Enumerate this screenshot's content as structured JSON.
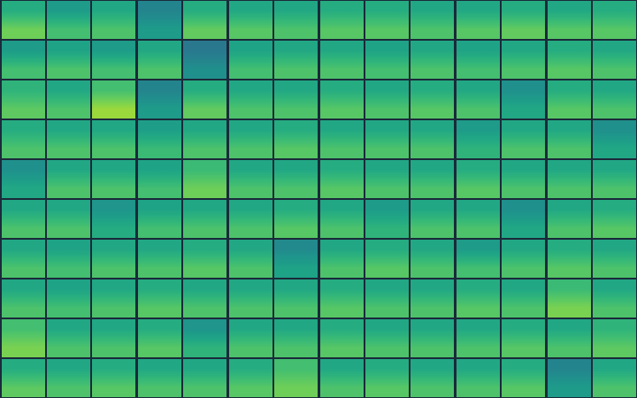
{
  "chart_data": {
    "type": "heatmap",
    "tick_labels": false,
    "color_range": [
      0,
      1
    ],
    "cells": [
      [
        [
          0.62,
          0.78
        ],
        [
          0.55,
          0.7
        ],
        [
          0.6,
          0.72
        ],
        [
          0.45,
          0.55
        ],
        [
          0.62,
          0.76
        ],
        [
          0.6,
          0.74
        ],
        [
          0.6,
          0.72
        ],
        [
          0.62,
          0.74
        ],
        [
          0.62,
          0.74
        ],
        [
          0.6,
          0.72
        ],
        [
          0.6,
          0.74
        ],
        [
          0.62,
          0.76
        ],
        [
          0.6,
          0.74
        ],
        [
          0.62,
          0.74
        ]
      ],
      [
        [
          0.55,
          0.7
        ],
        [
          0.58,
          0.72
        ],
        [
          0.55,
          0.7
        ],
        [
          0.6,
          0.72
        ],
        [
          0.4,
          0.5
        ],
        [
          0.58,
          0.7
        ],
        [
          0.6,
          0.72
        ],
        [
          0.6,
          0.72
        ],
        [
          0.58,
          0.7
        ],
        [
          0.6,
          0.72
        ],
        [
          0.58,
          0.7
        ],
        [
          0.6,
          0.72
        ],
        [
          0.62,
          0.74
        ],
        [
          0.6,
          0.72
        ]
      ],
      [
        [
          0.65,
          0.75
        ],
        [
          0.6,
          0.72
        ],
        [
          0.7,
          0.85
        ],
        [
          0.45,
          0.55
        ],
        [
          0.62,
          0.76
        ],
        [
          0.6,
          0.72
        ],
        [
          0.6,
          0.72
        ],
        [
          0.62,
          0.74
        ],
        [
          0.6,
          0.72
        ],
        [
          0.62,
          0.74
        ],
        [
          0.6,
          0.72
        ],
        [
          0.5,
          0.6
        ],
        [
          0.62,
          0.74
        ],
        [
          0.6,
          0.72
        ]
      ],
      [
        [
          0.62,
          0.72
        ],
        [
          0.6,
          0.72
        ],
        [
          0.6,
          0.72
        ],
        [
          0.56,
          0.68
        ],
        [
          0.6,
          0.72
        ],
        [
          0.6,
          0.72
        ],
        [
          0.62,
          0.74
        ],
        [
          0.6,
          0.72
        ],
        [
          0.6,
          0.72
        ],
        [
          0.6,
          0.72
        ],
        [
          0.55,
          0.65
        ],
        [
          0.6,
          0.72
        ],
        [
          0.6,
          0.72
        ],
        [
          0.5,
          0.6
        ]
      ],
      [
        [
          0.5,
          0.6
        ],
        [
          0.6,
          0.72
        ],
        [
          0.6,
          0.72
        ],
        [
          0.58,
          0.7
        ],
        [
          0.68,
          0.78
        ],
        [
          0.6,
          0.72
        ],
        [
          0.6,
          0.72
        ],
        [
          0.62,
          0.74
        ],
        [
          0.6,
          0.72
        ],
        [
          0.6,
          0.72
        ],
        [
          0.62,
          0.74
        ],
        [
          0.6,
          0.72
        ],
        [
          0.6,
          0.72
        ],
        [
          0.6,
          0.72
        ]
      ],
      [
        [
          0.6,
          0.72
        ],
        [
          0.6,
          0.72
        ],
        [
          0.52,
          0.62
        ],
        [
          0.58,
          0.7
        ],
        [
          0.6,
          0.72
        ],
        [
          0.6,
          0.72
        ],
        [
          0.62,
          0.74
        ],
        [
          0.6,
          0.72
        ],
        [
          0.55,
          0.65
        ],
        [
          0.6,
          0.72
        ],
        [
          0.6,
          0.72
        ],
        [
          0.5,
          0.6
        ],
        [
          0.6,
          0.72
        ],
        [
          0.62,
          0.74
        ]
      ],
      [
        [
          0.6,
          0.72
        ],
        [
          0.58,
          0.7
        ],
        [
          0.6,
          0.72
        ],
        [
          0.6,
          0.72
        ],
        [
          0.62,
          0.74
        ],
        [
          0.6,
          0.72
        ],
        [
          0.48,
          0.58
        ],
        [
          0.6,
          0.72
        ],
        [
          0.62,
          0.74
        ],
        [
          0.6,
          0.72
        ],
        [
          0.55,
          0.7
        ],
        [
          0.6,
          0.72
        ],
        [
          0.62,
          0.74
        ],
        [
          0.6,
          0.72
        ]
      ],
      [
        [
          0.6,
          0.72
        ],
        [
          0.58,
          0.7
        ],
        [
          0.6,
          0.72
        ],
        [
          0.62,
          0.74
        ],
        [
          0.6,
          0.72
        ],
        [
          0.6,
          0.72
        ],
        [
          0.6,
          0.72
        ],
        [
          0.62,
          0.74
        ],
        [
          0.6,
          0.72
        ],
        [
          0.6,
          0.72
        ],
        [
          0.62,
          0.74
        ],
        [
          0.6,
          0.72
        ],
        [
          0.68,
          0.8
        ],
        [
          0.6,
          0.72
        ]
      ],
      [
        [
          0.7,
          0.8
        ],
        [
          0.6,
          0.72
        ],
        [
          0.6,
          0.72
        ],
        [
          0.62,
          0.74
        ],
        [
          0.52,
          0.65
        ],
        [
          0.6,
          0.72
        ],
        [
          0.6,
          0.72
        ],
        [
          0.62,
          0.74
        ],
        [
          0.6,
          0.72
        ],
        [
          0.6,
          0.72
        ],
        [
          0.6,
          0.72
        ],
        [
          0.62,
          0.74
        ],
        [
          0.6,
          0.72
        ],
        [
          0.65,
          0.75
        ]
      ],
      [
        [
          0.62,
          0.75
        ],
        [
          0.6,
          0.72
        ],
        [
          0.62,
          0.74
        ],
        [
          0.6,
          0.72
        ],
        [
          0.6,
          0.72
        ],
        [
          0.62,
          0.74
        ],
        [
          0.7,
          0.78
        ],
        [
          0.6,
          0.72
        ],
        [
          0.62,
          0.74
        ],
        [
          0.6,
          0.72
        ],
        [
          0.6,
          0.72
        ],
        [
          0.62,
          0.74
        ],
        [
          0.45,
          0.55
        ],
        [
          0.6,
          0.72
        ]
      ]
    ]
  }
}
